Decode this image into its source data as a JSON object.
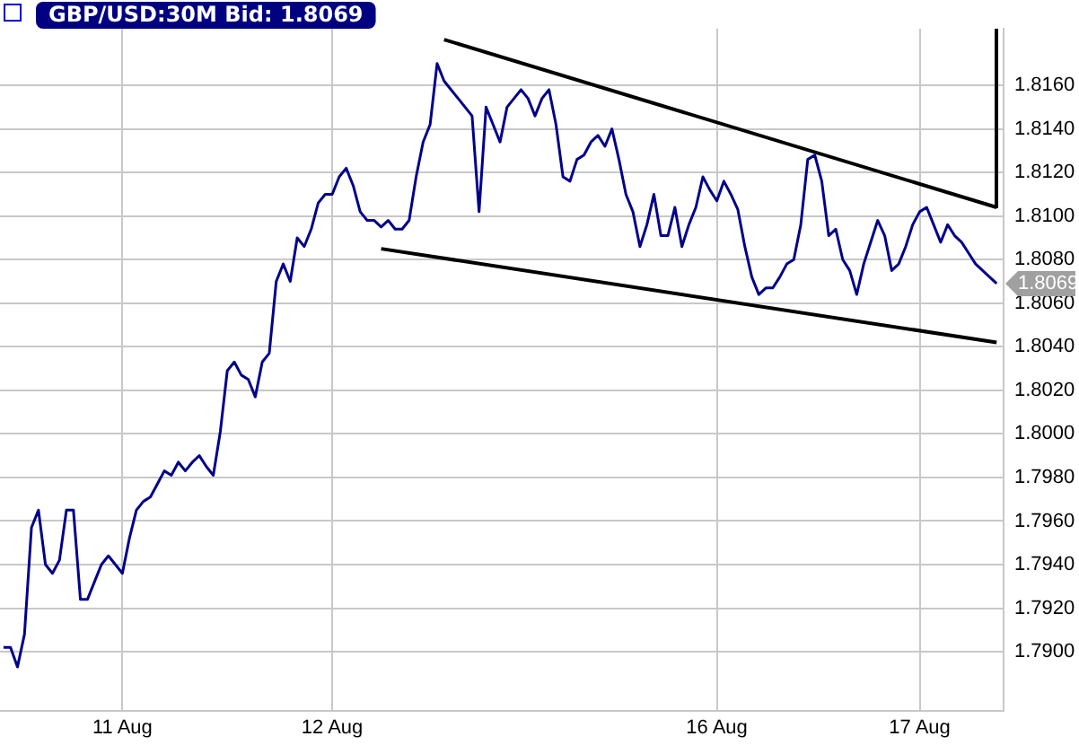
{
  "chart_data": {
    "type": "line",
    "title": "GBP/USD:30M Bid: 1.8069",
    "categories": [
      null,
      null,
      null,
      null,
      null,
      null,
      null,
      null,
      null,
      null,
      null,
      null,
      null,
      null,
      null,
      null,
      null,
      "11 Aug",
      null,
      null,
      null,
      null,
      null,
      null,
      null,
      null,
      null,
      null,
      null,
      null,
      null,
      null,
      null,
      null,
      null,
      null,
      null,
      null,
      null,
      null,
      null,
      null,
      null,
      null,
      null,
      null,
      null,
      "12 Aug",
      null,
      null,
      null,
      null,
      null,
      null,
      null,
      null,
      null,
      null,
      null,
      null,
      null,
      null,
      null,
      null,
      null,
      null,
      null,
      null,
      null,
      null,
      null,
      null,
      null,
      null,
      null,
      null,
      null,
      null,
      null,
      null,
      null,
      null,
      null,
      null,
      null,
      null,
      null,
      null,
      null,
      null,
      null,
      null,
      null,
      null,
      null,
      null,
      null,
      null,
      null,
      null,
      null,
      null,
      "16 Aug",
      null,
      null,
      null,
      null,
      null,
      null,
      null,
      null,
      null,
      null,
      null,
      null,
      null,
      null,
      null,
      null,
      null,
      null,
      null,
      null,
      null,
      null,
      null,
      null,
      null,
      null,
      null,
      null,
      "17 Aug",
      null,
      null,
      null,
      null,
      null,
      null,
      null,
      null,
      null,
      null,
      null
    ],
    "series": [
      {
        "color": "#00008b",
        "values": [
          1.7902,
          1.7902,
          1.7893,
          1.7908,
          1.7957,
          1.7965,
          1.794,
          1.7936,
          1.7942,
          1.7965,
          1.7965,
          1.7924,
          1.7924,
          1.7932,
          1.794,
          1.7944,
          1.794,
          1.7936,
          1.7952,
          1.7965,
          1.7969,
          1.7971,
          1.7977,
          1.7983,
          1.7981,
          1.7987,
          1.7983,
          1.7987,
          1.799,
          1.7985,
          1.7981,
          1.8001,
          1.8029,
          1.8033,
          1.8027,
          1.8025,
          1.8017,
          1.8033,
          1.8037,
          1.807,
          1.8078,
          1.807,
          1.809,
          1.8086,
          1.8094,
          1.8106,
          1.811,
          1.811,
          1.8118,
          1.8122,
          1.8114,
          1.8102,
          1.8098,
          1.8098,
          1.8095,
          1.8098,
          1.8094,
          1.8094,
          1.8098,
          1.8118,
          1.8134,
          1.8142,
          1.817,
          1.8162,
          1.8158,
          1.8154,
          1.815,
          1.8146,
          1.8102,
          1.815,
          1.8142,
          1.8134,
          1.815,
          1.8154,
          1.8158,
          1.8154,
          1.8146,
          1.8154,
          1.8158,
          1.8142,
          1.8118,
          1.8116,
          1.8126,
          1.8128,
          1.8134,
          1.8137,
          1.8132,
          1.814,
          1.8126,
          1.811,
          1.8102,
          1.8086,
          1.8096,
          1.811,
          1.8091,
          1.8091,
          1.8104,
          1.8086,
          1.8096,
          1.8104,
          1.8118,
          1.8112,
          1.8107,
          1.8116,
          1.811,
          1.8103,
          1.8086,
          1.8072,
          1.8064,
          1.8067,
          1.8067,
          1.8072,
          1.8078,
          1.808,
          1.8096,
          1.8126,
          1.8128,
          1.8116,
          1.8091,
          1.8094,
          1.808,
          1.8075,
          1.8064,
          1.8078,
          1.8088,
          1.8098,
          1.8091,
          1.8075,
          1.8078,
          1.8086,
          1.8096,
          1.8102,
          1.8104,
          1.8096,
          1.8088,
          1.8096,
          1.8091,
          1.8088,
          1.8083,
          1.8078,
          1.8075,
          1.8072,
          1.8069
        ]
      },
      {
        "type": "line",
        "color": "#000000",
        "values": [
          null,
          null,
          null,
          null,
          null,
          null,
          null,
          null,
          null,
          null,
          null,
          null,
          null,
          null,
          null,
          null,
          null,
          null,
          null,
          null,
          null,
          null,
          null,
          null,
          null,
          null,
          null,
          null,
          null,
          null,
          null,
          null,
          null,
          null,
          null,
          null,
          null,
          null,
          null,
          null,
          null,
          null,
          null,
          null,
          null,
          null,
          null,
          null,
          null,
          null,
          null,
          null,
          null,
          null,
          null,
          null,
          null,
          null,
          null,
          null,
          null,
          null,
          null,
          1.8181,
          null,
          null,
          null,
          null,
          null,
          null,
          null,
          null,
          null,
          null,
          null,
          null,
          null,
          null,
          null,
          null,
          null,
          null,
          null,
          null,
          null,
          null,
          null,
          null,
          null,
          null,
          null,
          null,
          null,
          null,
          null,
          null,
          null,
          null,
          null,
          null,
          null,
          null,
          null,
          null,
          null,
          null,
          null,
          null,
          null,
          null,
          null,
          null,
          null,
          null,
          null,
          null,
          null,
          null,
          null,
          null,
          null,
          null,
          null,
          null,
          null,
          null,
          null,
          null,
          null,
          null,
          null,
          null,
          null,
          null,
          null,
          null,
          null,
          null,
          null,
          null,
          null,
          null,
          1.8104
        ]
      },
      {
        "type": "line",
        "color": "#000000",
        "values": [
          null,
          null,
          null,
          null,
          null,
          null,
          null,
          null,
          null,
          null,
          null,
          null,
          null,
          null,
          null,
          null,
          null,
          null,
          null,
          null,
          null,
          null,
          null,
          null,
          null,
          null,
          null,
          null,
          null,
          null,
          null,
          null,
          null,
          null,
          null,
          null,
          null,
          null,
          null,
          null,
          null,
          null,
          null,
          null,
          null,
          null,
          null,
          null,
          null,
          null,
          null,
          null,
          null,
          null,
          1.8085,
          null,
          null,
          null,
          null,
          null,
          null,
          null,
          null,
          null,
          null,
          null,
          null,
          null,
          null,
          null,
          null,
          null,
          null,
          null,
          null,
          null,
          null,
          null,
          null,
          null,
          null,
          null,
          null,
          null,
          null,
          null,
          null,
          null,
          null,
          null,
          null,
          null,
          null,
          null,
          null,
          null,
          null,
          null,
          null,
          null,
          null,
          null,
          null,
          null,
          null,
          null,
          null,
          null,
          null,
          null,
          null,
          null,
          null,
          null,
          null,
          null,
          null,
          null,
          null,
          null,
          null,
          null,
          null,
          null,
          null,
          null,
          null,
          null,
          null,
          null,
          null,
          null,
          null,
          null,
          null,
          null,
          null,
          null,
          null,
          null,
          null,
          null,
          1.8042
        ]
      }
    ],
    "ylim": [
      1.7873,
      1.8186
    ],
    "yticks": [
      {
        "value": 1.79,
        "label": "1.7900"
      },
      {
        "value": 1.792,
        "label": "1.7920"
      },
      {
        "value": 1.794,
        "label": "1.7940"
      },
      {
        "value": 1.796,
        "label": "1.7960"
      },
      {
        "value": 1.798,
        "label": "1.7980"
      },
      {
        "value": 1.8,
        "label": "1.8000"
      },
      {
        "value": 1.802,
        "label": "1.8020"
      },
      {
        "value": 1.804,
        "label": "1.8040"
      },
      {
        "value": 1.806,
        "label": "1.8060"
      },
      {
        "value": 1.808,
        "label": "1.8080"
      },
      {
        "value": 1.81,
        "label": "1.8100"
      },
      {
        "value": 1.812,
        "label": "1.8120"
      },
      {
        "value": 1.814,
        "label": "1.8140"
      },
      {
        "value": 1.816,
        "label": "1.8160"
      }
    ],
    "annotations": [
      "1.8069"
    ],
    "grid": true,
    "legend": false,
    "marker": "none",
    "line_style": "solid"
  }
}
